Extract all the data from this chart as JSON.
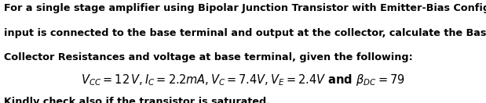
{
  "background_color": "#ffffff",
  "text_color": "#000000",
  "line1": "For a single stage amplifier using Bipolar Junction Transistor with Emitter-Bias Configuration whose",
  "line2": "input is connected to the base terminal and output at the collector, calculate the Base, Emitter, and",
  "line3": "Collector Resistances and voltage at base terminal, given the following:",
  "equation": "$V_{CC} = 12\\,V, I_C = 2.2mA, V_C = 7.4V, V_E = 2.4V$ and $\\beta_{DC} = 79$",
  "line4": "Kindly check also if the transistor is saturated.",
  "body_fontsize": 9.2,
  "eq_fontsize": 10.5
}
